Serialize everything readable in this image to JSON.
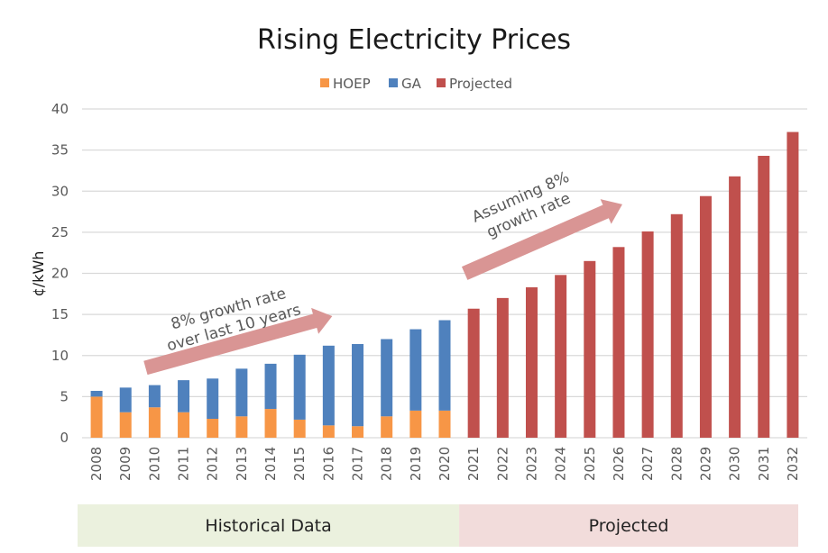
{
  "chart_data": {
    "type": "bar",
    "title": "Rising Electricity Prices",
    "xlabel": "",
    "ylabel": "¢/kWh",
    "ylim": [
      0,
      40
    ],
    "yticks": [
      0,
      5,
      10,
      15,
      20,
      25,
      30,
      35,
      40
    ],
    "grid": true,
    "legend_position": "top-center",
    "stacked": true,
    "categories": [
      "2008",
      "2009",
      "2010",
      "2011",
      "2012",
      "2013",
      "2014",
      "2015",
      "2016",
      "2017",
      "2018",
      "2019",
      "2020",
      "2021",
      "2022",
      "2023",
      "2024",
      "2025",
      "2026",
      "2027",
      "2028",
      "2029",
      "2030",
      "2031",
      "2032"
    ],
    "series": [
      {
        "name": "HOEP",
        "color": "#F79646",
        "values": [
          5.0,
          3.1,
          3.7,
          3.1,
          2.3,
          2.6,
          3.5,
          2.2,
          1.5,
          1.4,
          2.6,
          3.3,
          3.3,
          null,
          null,
          null,
          null,
          null,
          null,
          null,
          null,
          null,
          null,
          null,
          null
        ]
      },
      {
        "name": "GA",
        "color": "#4F81BD",
        "values": [
          0.7,
          3.0,
          2.7,
          3.9,
          4.9,
          5.8,
          5.5,
          7.9,
          9.7,
          10.0,
          9.4,
          9.9,
          11.0,
          null,
          null,
          null,
          null,
          null,
          null,
          null,
          null,
          null,
          null,
          null,
          null
        ]
      },
      {
        "name": "Projected",
        "color": "#C0504D",
        "values": [
          null,
          null,
          null,
          null,
          null,
          null,
          null,
          null,
          null,
          null,
          null,
          null,
          null,
          15.7,
          17.0,
          18.3,
          19.8,
          21.5,
          23.2,
          25.1,
          27.2,
          29.4,
          31.8,
          34.3,
          37.2
        ]
      }
    ],
    "annotations": [
      {
        "text_lines": [
          "8% growth rate",
          "over last 10 years"
        ],
        "arrow_from": [
          "2010",
          8.5
        ],
        "arrow_to": [
          "2016",
          14.8
        ]
      },
      {
        "text_lines": [
          "Assuming 8%",
          "growth rate"
        ],
        "arrow_from": [
          "2021",
          20.0
        ],
        "arrow_to": [
          "2026",
          28.4
        ]
      }
    ],
    "bands": [
      {
        "label": "Historical Data",
        "from": "2008",
        "to": "2020",
        "color": "#EBF1DE"
      },
      {
        "label": "Projected",
        "from": "2021",
        "to": "2032",
        "color": "#F2DCDB"
      }
    ]
  }
}
